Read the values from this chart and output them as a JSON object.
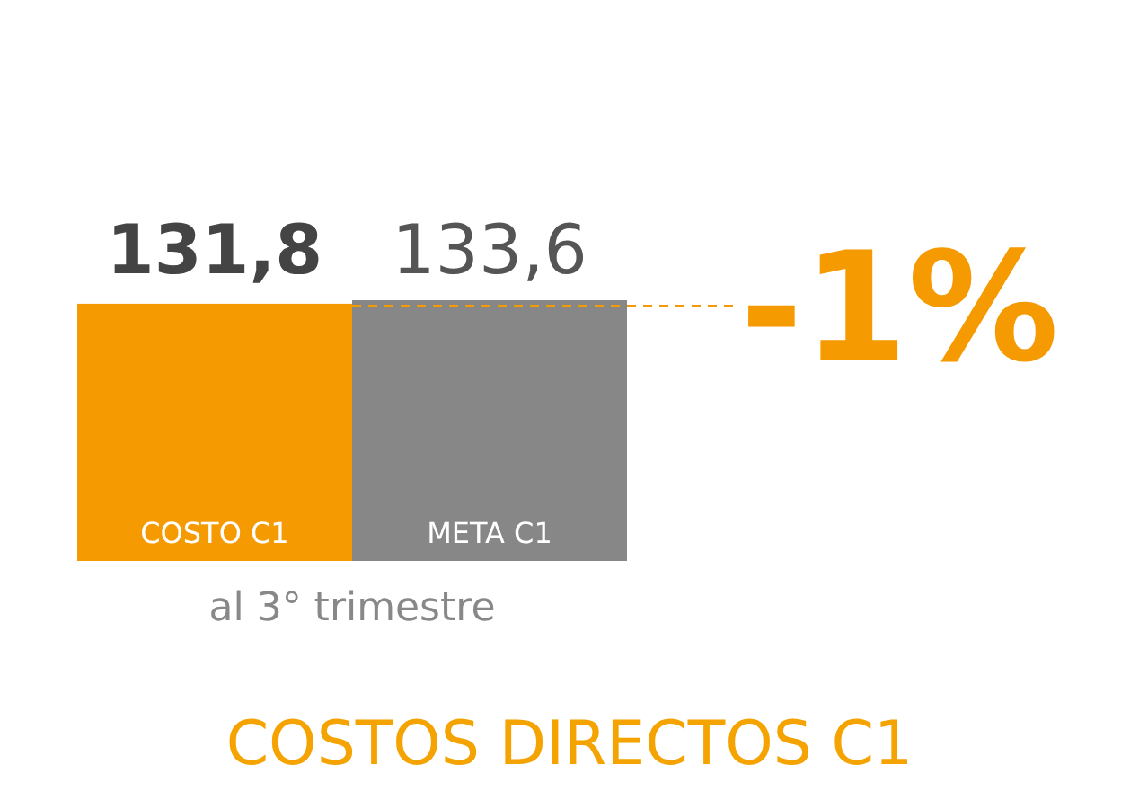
{
  "chart_data": {
    "type": "bar",
    "title": "COSTOS DIRECTOS C1",
    "xlabel": "al 3° trimestre",
    "categories": [
      "COSTO C1",
      "META C1"
    ],
    "values": [
      131.8,
      133.6
    ],
    "colors": [
      "#f59a00",
      "#878787"
    ],
    "value_labels": [
      "131,8",
      "133,6"
    ],
    "annotations": [
      {
        "text": "-1%",
        "x": "META C1",
        "y": 133.6
      }
    ]
  }
}
